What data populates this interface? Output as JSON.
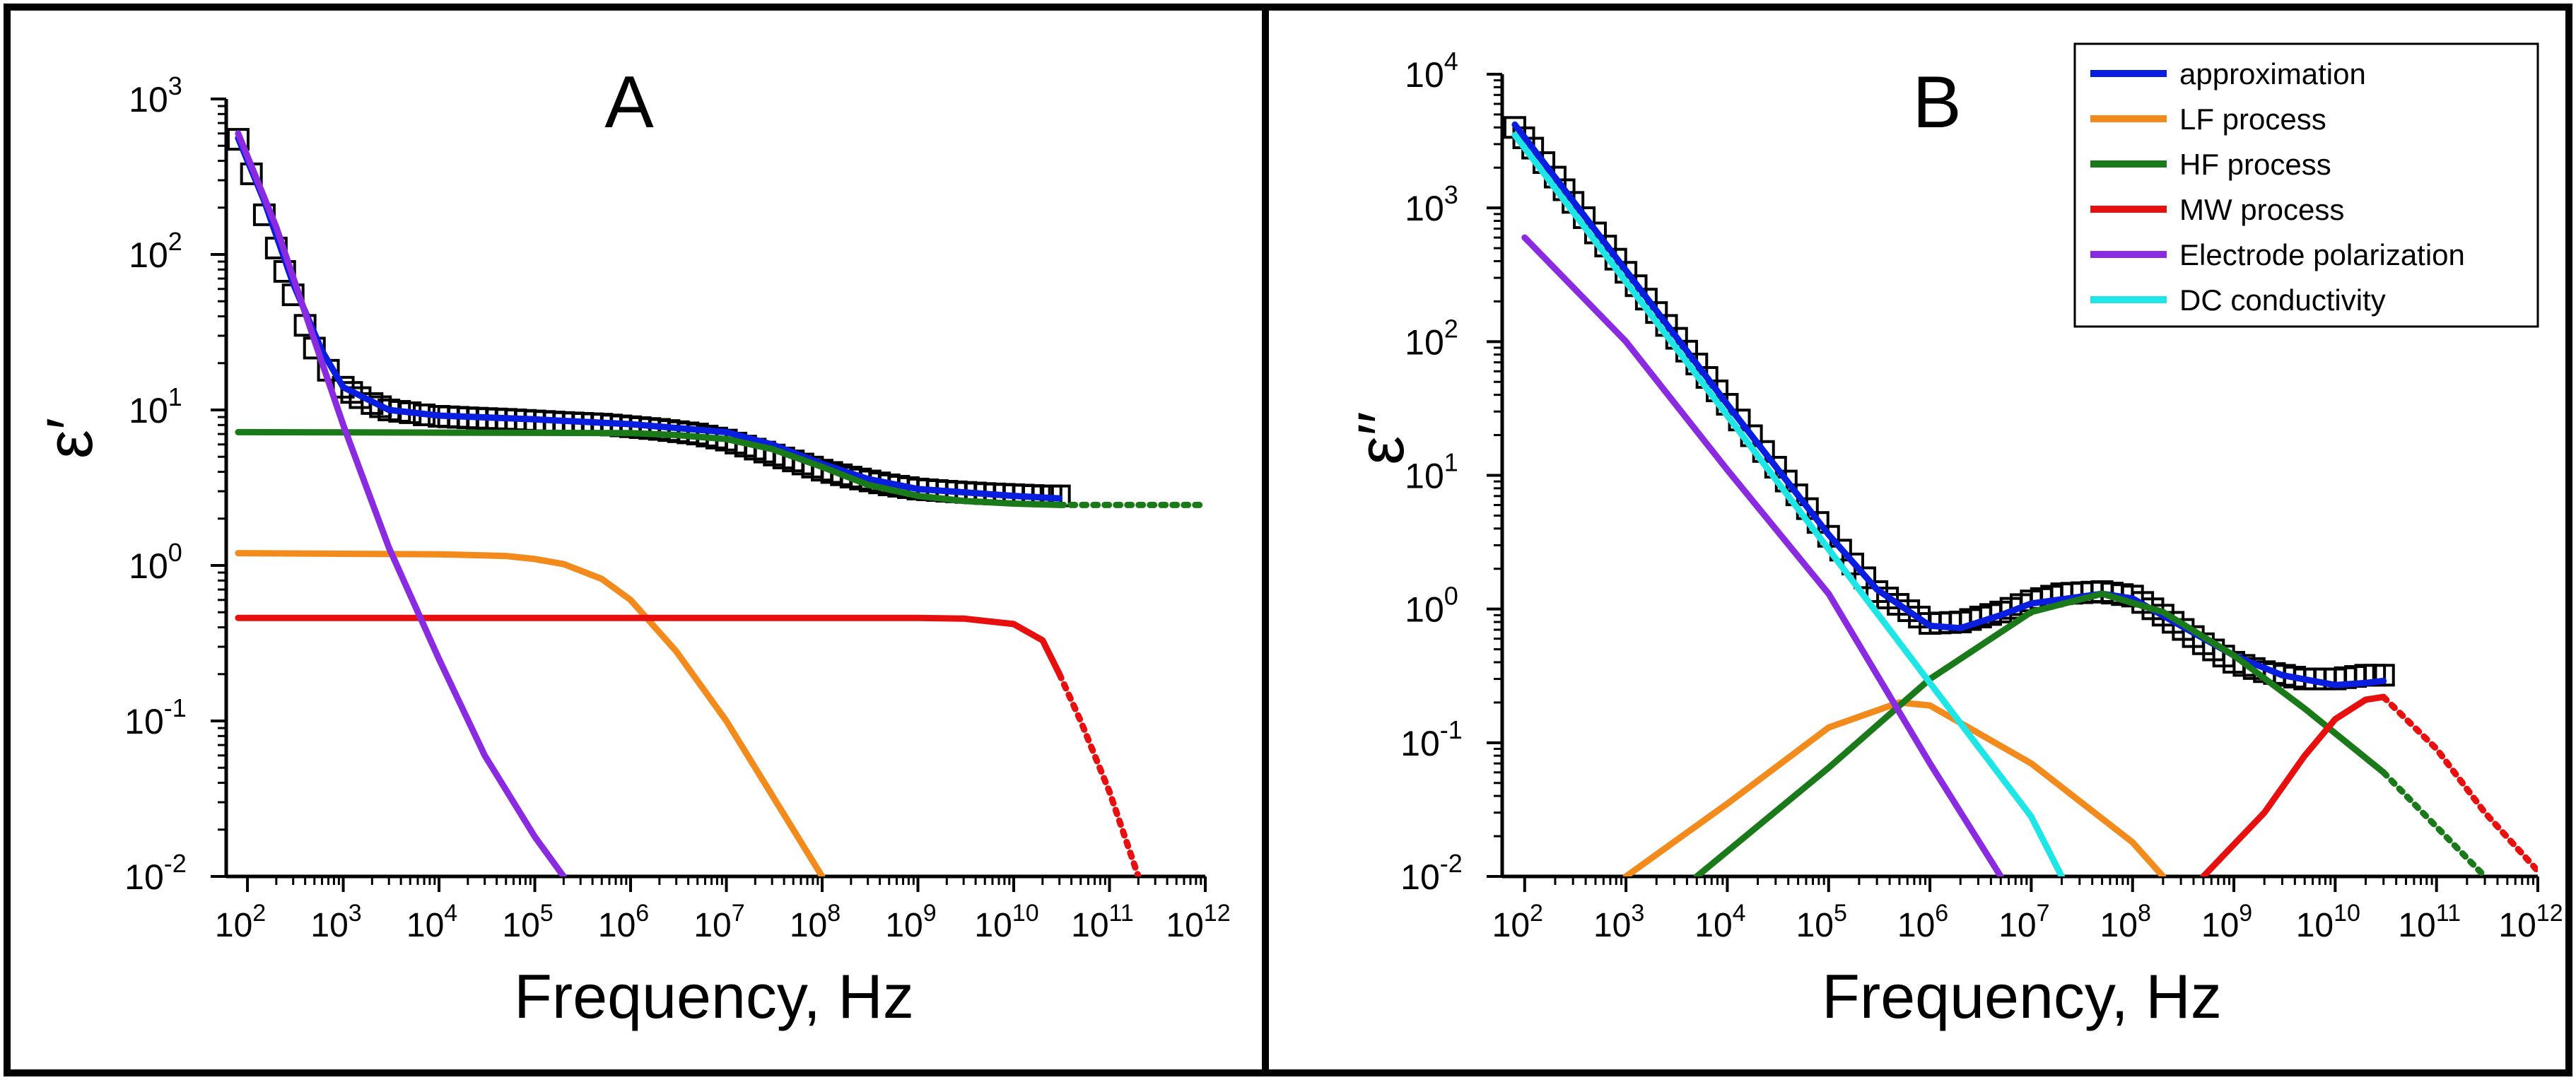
{
  "chart_data": [
    {
      "panel": "A",
      "type": "line",
      "title": "A",
      "xlabel": "Frequency, Hz",
      "ylabel": "ε′",
      "xscale": "log",
      "yscale": "log",
      "xlim": [
        60,
        1000000000000.0
      ],
      "ylim": [
        0.01,
        1000
      ],
      "x_ticks": [
        {
          "value": 100,
          "base": "10",
          "exp": "2"
        },
        {
          "value": 1000,
          "base": "10",
          "exp": "3"
        },
        {
          "value": 10000,
          "base": "10",
          "exp": "4"
        },
        {
          "value": 100000,
          "base": "10",
          "exp": "5"
        },
        {
          "value": 1000000,
          "base": "10",
          "exp": "6"
        },
        {
          "value": 10000000,
          "base": "10",
          "exp": "7"
        },
        {
          "value": 100000000,
          "base": "10",
          "exp": "8"
        },
        {
          "value": 1000000000,
          "base": "10",
          "exp": "9"
        },
        {
          "value": 10000000000,
          "base": "10",
          "exp": "10"
        },
        {
          "value": 100000000000,
          "base": "10",
          "exp": "11"
        },
        {
          "value": 1000000000000,
          "base": "10",
          "exp": "12"
        }
      ],
      "y_ticks": [
        {
          "value": 0.01,
          "base": "10",
          "exp": "-2"
        },
        {
          "value": 0.1,
          "base": "10",
          "exp": "-1"
        },
        {
          "value": 1,
          "base": "10",
          "exp": "0"
        },
        {
          "value": 10,
          "base": "10",
          "exp": "1"
        },
        {
          "value": 100,
          "base": "10",
          "exp": "2"
        },
        {
          "value": 1000,
          "base": "10",
          "exp": "3"
        }
      ],
      "experimental": {
        "name": "data",
        "marker": "open-square",
        "x": [
          80,
          110,
          150,
          200,
          300,
          400,
          500,
          700,
          1000,
          1500,
          2000,
          3000,
          5000,
          7000,
          10000,
          20000,
          50000,
          100000,
          200000,
          500000,
          1000000,
          2000000,
          5000000,
          10000000,
          20000000,
          50000000,
          100000000,
          200000000,
          500000000,
          1000000000,
          2000000000,
          5000000000,
          10000000000,
          20000000000,
          30000000000
        ],
        "y": [
          550,
          330,
          180,
          110,
          55,
          35,
          25,
          18,
          14,
          12,
          11,
          10,
          9.6,
          9.3,
          9.1,
          8.9,
          8.7,
          8.5,
          8.3,
          8.1,
          7.8,
          7.5,
          7,
          6.4,
          5.6,
          4.7,
          4.1,
          3.7,
          3.3,
          3.1,
          3,
          2.9,
          2.85,
          2.8,
          2.8
        ]
      },
      "series": [
        {
          "name": "approximation",
          "color": "#0a1ee0",
          "x": [
            80,
            150,
            300,
            600,
            1000,
            3000,
            10000,
            100000,
            1000000,
            10000000,
            30000000,
            100000000,
            300000000,
            1000000000,
            10000000000,
            30000000000
          ],
          "y": [
            560,
            220,
            65,
            24,
            14,
            10,
            9.2,
            8.7,
            8.1,
            7.2,
            6,
            4.5,
            3.6,
            3.1,
            2.8,
            2.7
          ]
        },
        {
          "name": "HF process",
          "color": "#1a7a1a",
          "x_solid_max": 30000000000,
          "x": [
            80,
            1000000,
            3000000,
            10000000,
            30000000,
            100000000,
            300000000,
            1000000000,
            3000000000,
            10000000000,
            30000000000,
            100000000000,
            1000000000000
          ],
          "y": [
            7.2,
            7.1,
            6.9,
            6.5,
            5.6,
            4.3,
            3.3,
            2.8,
            2.6,
            2.5,
            2.45,
            2.45,
            2.45
          ]
        },
        {
          "name": "LF process",
          "color": "#f28a1c",
          "x": [
            80,
            10000,
            50000,
            100000,
            200000,
            500000,
            1000000,
            3000000,
            10000000,
            100000000
          ],
          "y": [
            1.2,
            1.18,
            1.15,
            1.1,
            1.02,
            0.82,
            0.6,
            0.28,
            0.1,
            0.01
          ]
        },
        {
          "name": "MW process",
          "color": "#e80f0f",
          "x_solid_max": 30000000000,
          "x": [
            80,
            1000000000,
            3000000000,
            10000000000,
            20000000000,
            30000000000,
            50000000000,
            100000000000,
            200000000000
          ],
          "y": [
            0.46,
            0.46,
            0.455,
            0.42,
            0.33,
            0.2,
            0.1,
            0.035,
            0.01
          ]
        },
        {
          "name": "Electrode polarization",
          "color": "#8a2be2",
          "x": [
            80,
            200,
            500,
            1000,
            3000,
            10000,
            30000,
            100000,
            200000
          ],
          "y": [
            600,
            150,
            28,
            8,
            1.3,
            0.25,
            0.06,
            0.018,
            0.01
          ]
        }
      ]
    },
    {
      "panel": "B",
      "type": "line",
      "title": "B",
      "xlabel": "Frequency, Hz",
      "ylabel": "ε′′",
      "xscale": "log",
      "yscale": "log",
      "xlim": [
        60,
        1000000000000.0
      ],
      "ylim": [
        0.01,
        10000
      ],
      "x_ticks": [
        {
          "value": 100,
          "base": "10",
          "exp": "2"
        },
        {
          "value": 1000,
          "base": "10",
          "exp": "3"
        },
        {
          "value": 10000,
          "base": "10",
          "exp": "4"
        },
        {
          "value": 100000,
          "base": "10",
          "exp": "5"
        },
        {
          "value": 1000000,
          "base": "10",
          "exp": "6"
        },
        {
          "value": 10000000,
          "base": "10",
          "exp": "7"
        },
        {
          "value": 100000000,
          "base": "10",
          "exp": "8"
        },
        {
          "value": 1000000000,
          "base": "10",
          "exp": "9"
        },
        {
          "value": 10000000000,
          "base": "10",
          "exp": "10"
        },
        {
          "value": 100000000000,
          "base": "10",
          "exp": "11"
        },
        {
          "value": 1000000000000,
          "base": "10",
          "exp": "12"
        }
      ],
      "y_ticks": [
        {
          "value": 0.01,
          "base": "10",
          "exp": "-2"
        },
        {
          "value": 0.1,
          "base": "10",
          "exp": "-1"
        },
        {
          "value": 1,
          "base": "10",
          "exp": "0"
        },
        {
          "value": 10,
          "base": "10",
          "exp": "1"
        },
        {
          "value": 100,
          "base": "10",
          "exp": "2"
        },
        {
          "value": 1000,
          "base": "10",
          "exp": "3"
        },
        {
          "value": 10000,
          "base": "10",
          "exp": "4"
        }
      ],
      "legend": [
        "approximation",
        "LF process",
        "HF process",
        "MW process",
        "Electrode polarization",
        "DC conductivity"
      ],
      "experimental": {
        "name": "data",
        "marker": "open-square",
        "x": [
          80,
          120,
          200,
          300,
          500,
          1000,
          2000,
          5000,
          10000,
          30000,
          100000,
          300000,
          1000000,
          2000000,
          5000000,
          10000000,
          20000000,
          50000000,
          100000000,
          200000000,
          500000000,
          1000000000,
          2000000000,
          5000000000,
          10000000000,
          20000000000,
          30000000000
        ],
        "y": [
          4000,
          2800,
          1700,
          1100,
          650,
          330,
          165,
          68,
          34,
          11.5,
          3.5,
          1.35,
          0.78,
          0.8,
          0.95,
          1.15,
          1.3,
          1.35,
          1.25,
          0.9,
          0.55,
          0.4,
          0.34,
          0.3,
          0.3,
          0.32,
          0.32
        ]
      },
      "series": [
        {
          "name": "approximation",
          "color": "#0a1ee0",
          "x": [
            80,
            1000,
            10000,
            100000,
            300000,
            1000000,
            2000000,
            5000000,
            10000000,
            50000000,
            100000000,
            300000000,
            1000000000,
            3000000000,
            10000000000,
            20000000000,
            30000000000
          ],
          "y": [
            4200,
            340,
            34,
            3.6,
            1.4,
            0.75,
            0.72,
            0.9,
            1.1,
            1.3,
            1.2,
            0.75,
            0.45,
            0.32,
            0.27,
            0.28,
            0.29
          ]
        },
        {
          "name": "LF process",
          "color": "#f28a1c",
          "x": [
            1000,
            10000,
            100000,
            500000,
            1000000,
            10000000,
            100000000,
            200000000
          ],
          "y": [
            0.01,
            0.035,
            0.13,
            0.2,
            0.19,
            0.07,
            0.018,
            0.01
          ]
        },
        {
          "name": "HF process",
          "color": "#1a7a1a",
          "x_solid_max": 30000000000,
          "x": [
            5000,
            100000,
            1000000,
            10000000,
            50000000,
            200000000,
            1000000000,
            5000000000,
            30000000000,
            300000000000
          ],
          "y": [
            0.01,
            0.065,
            0.3,
            0.95,
            1.3,
            0.95,
            0.45,
            0.18,
            0.06,
            0.01
          ]
        },
        {
          "name": "MW process",
          "color": "#e80f0f",
          "x_solid_max": 30000000000,
          "x": [
            500000000,
            2000000000,
            5000000000,
            10000000000,
            20000000000,
            30000000000,
            100000000000,
            300000000000,
            1000000000000
          ],
          "y": [
            0.01,
            0.03,
            0.08,
            0.15,
            0.21,
            0.22,
            0.09,
            0.03,
            0.011
          ]
        },
        {
          "name": "Electrode polarization",
          "color": "#8a2be2",
          "x": [
            100,
            1000,
            10000,
            100000,
            1000000,
            5000000
          ],
          "y": [
            600,
            100,
            11,
            1.3,
            0.07,
            0.01
          ]
        },
        {
          "name": "DC conductivity",
          "color": "#1ee6e6",
          "x": [
            80,
            1000,
            10000,
            100000,
            1000000,
            10000000,
            20000000
          ],
          "y": [
            3500,
            280,
            28,
            2.8,
            0.28,
            0.028,
            0.01
          ]
        }
      ]
    }
  ]
}
